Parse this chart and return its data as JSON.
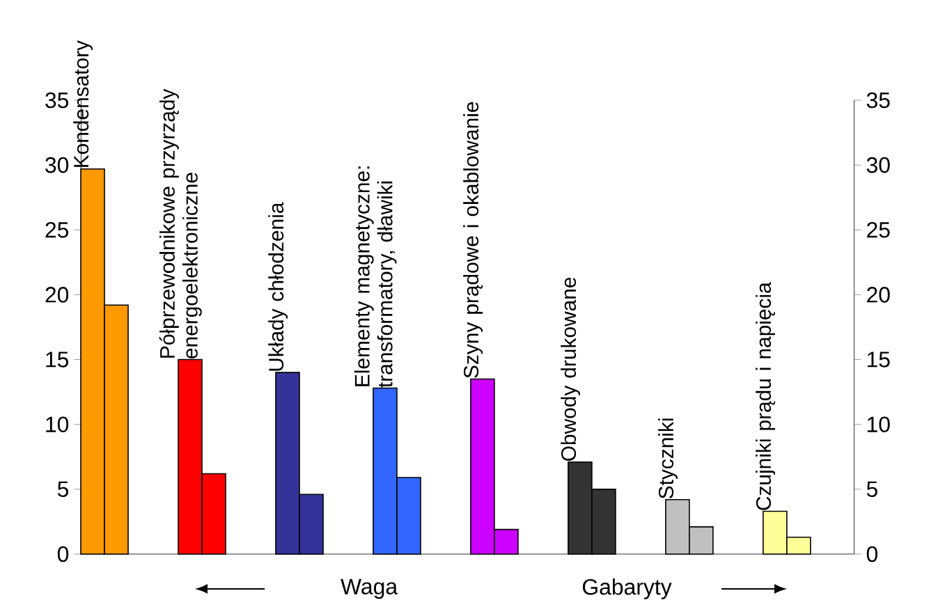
{
  "chart_data": {
    "type": "bar",
    "categories": [
      "Kondensatory",
      "Półprzewodnikowe przyrządy energoelektroniczne",
      "Układy chłodzenia",
      "Elementy magnetyczne: transformatory, dławiki",
      "Szyny prądowe i okablowanie",
      "Obwody drukowane",
      "Styczniki",
      "Czujniki prądu i napięcia"
    ],
    "series": [
      {
        "colors": [
          "#ff9900",
          "#ff0000",
          "#333399",
          "#3366ff",
          "#cc00ff",
          "#333333",
          "#c0c0c0",
          "#ffff99"
        ],
        "values": [
          29.7,
          15,
          14,
          12.8,
          13.5,
          7.1,
          4.2,
          3.3
        ]
      },
      {
        "colors": [
          "#ff9900",
          "#ff0000",
          "#333399",
          "#3366ff",
          "#cc00ff",
          "#333333",
          "#c0c0c0",
          "#ffff99"
        ],
        "values": [
          19.2,
          6.2,
          4.6,
          5.9,
          1.9,
          5,
          2.1,
          1.3
        ]
      }
    ],
    "ylim": [
      0,
      35
    ],
    "yticks": [
      0,
      5,
      10,
      15,
      20,
      25,
      30,
      35
    ],
    "y2lim": [
      0,
      35
    ],
    "y2ticks": [
      0,
      5,
      10,
      15,
      20,
      25,
      30,
      35
    ],
    "grid": false,
    "annotations": [
      "Waga",
      "Gabaryty"
    ]
  }
}
